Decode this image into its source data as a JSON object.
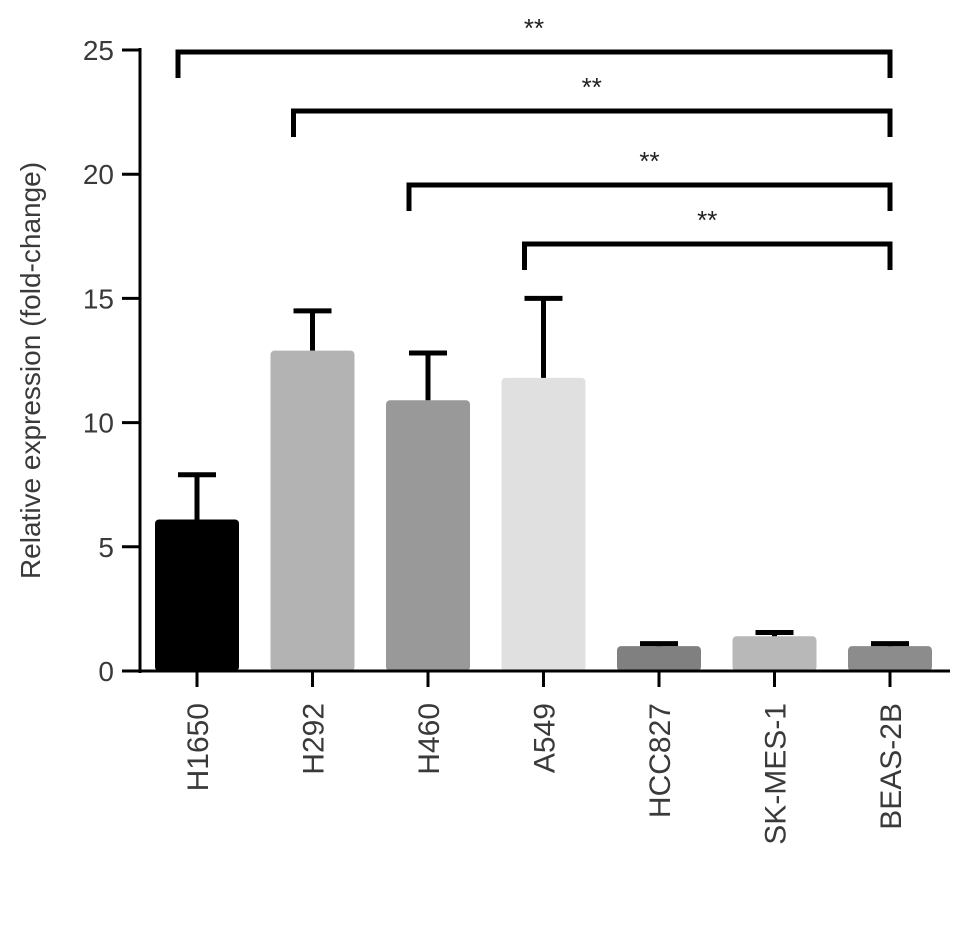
{
  "chart_data": {
    "type": "bar",
    "title": "",
    "xlabel": "",
    "ylabel": "Relative expression (fold-change)",
    "ylim": [
      0,
      25
    ],
    "yticks": [
      0,
      5,
      10,
      15,
      20,
      25
    ],
    "categories": [
      "H1650",
      "H292",
      "H460",
      "A549",
      "HCC827",
      "SK-MES-1",
      "BEAS-2B"
    ],
    "values": [
      6.1,
      12.9,
      10.9,
      11.8,
      1.0,
      1.4,
      1.0
    ],
    "errors": [
      1.8,
      1.6,
      1.9,
      3.2,
      0.1,
      0.15,
      0.1
    ],
    "colors": [
      "#000000",
      "#b3b3b3",
      "#999999",
      "#e0e0e0",
      "#808080",
      "#b8b8b8",
      "#8c8c8c"
    ],
    "grid": false,
    "significance": [
      {
        "from": "H1650",
        "to": "BEAS-2B",
        "label": "**"
      },
      {
        "from": "H292",
        "to": "BEAS-2B",
        "label": "**"
      },
      {
        "from": "H460",
        "to": "BEAS-2B",
        "label": "**"
      },
      {
        "from": "A549",
        "to": "BEAS-2B",
        "label": "**"
      }
    ]
  }
}
